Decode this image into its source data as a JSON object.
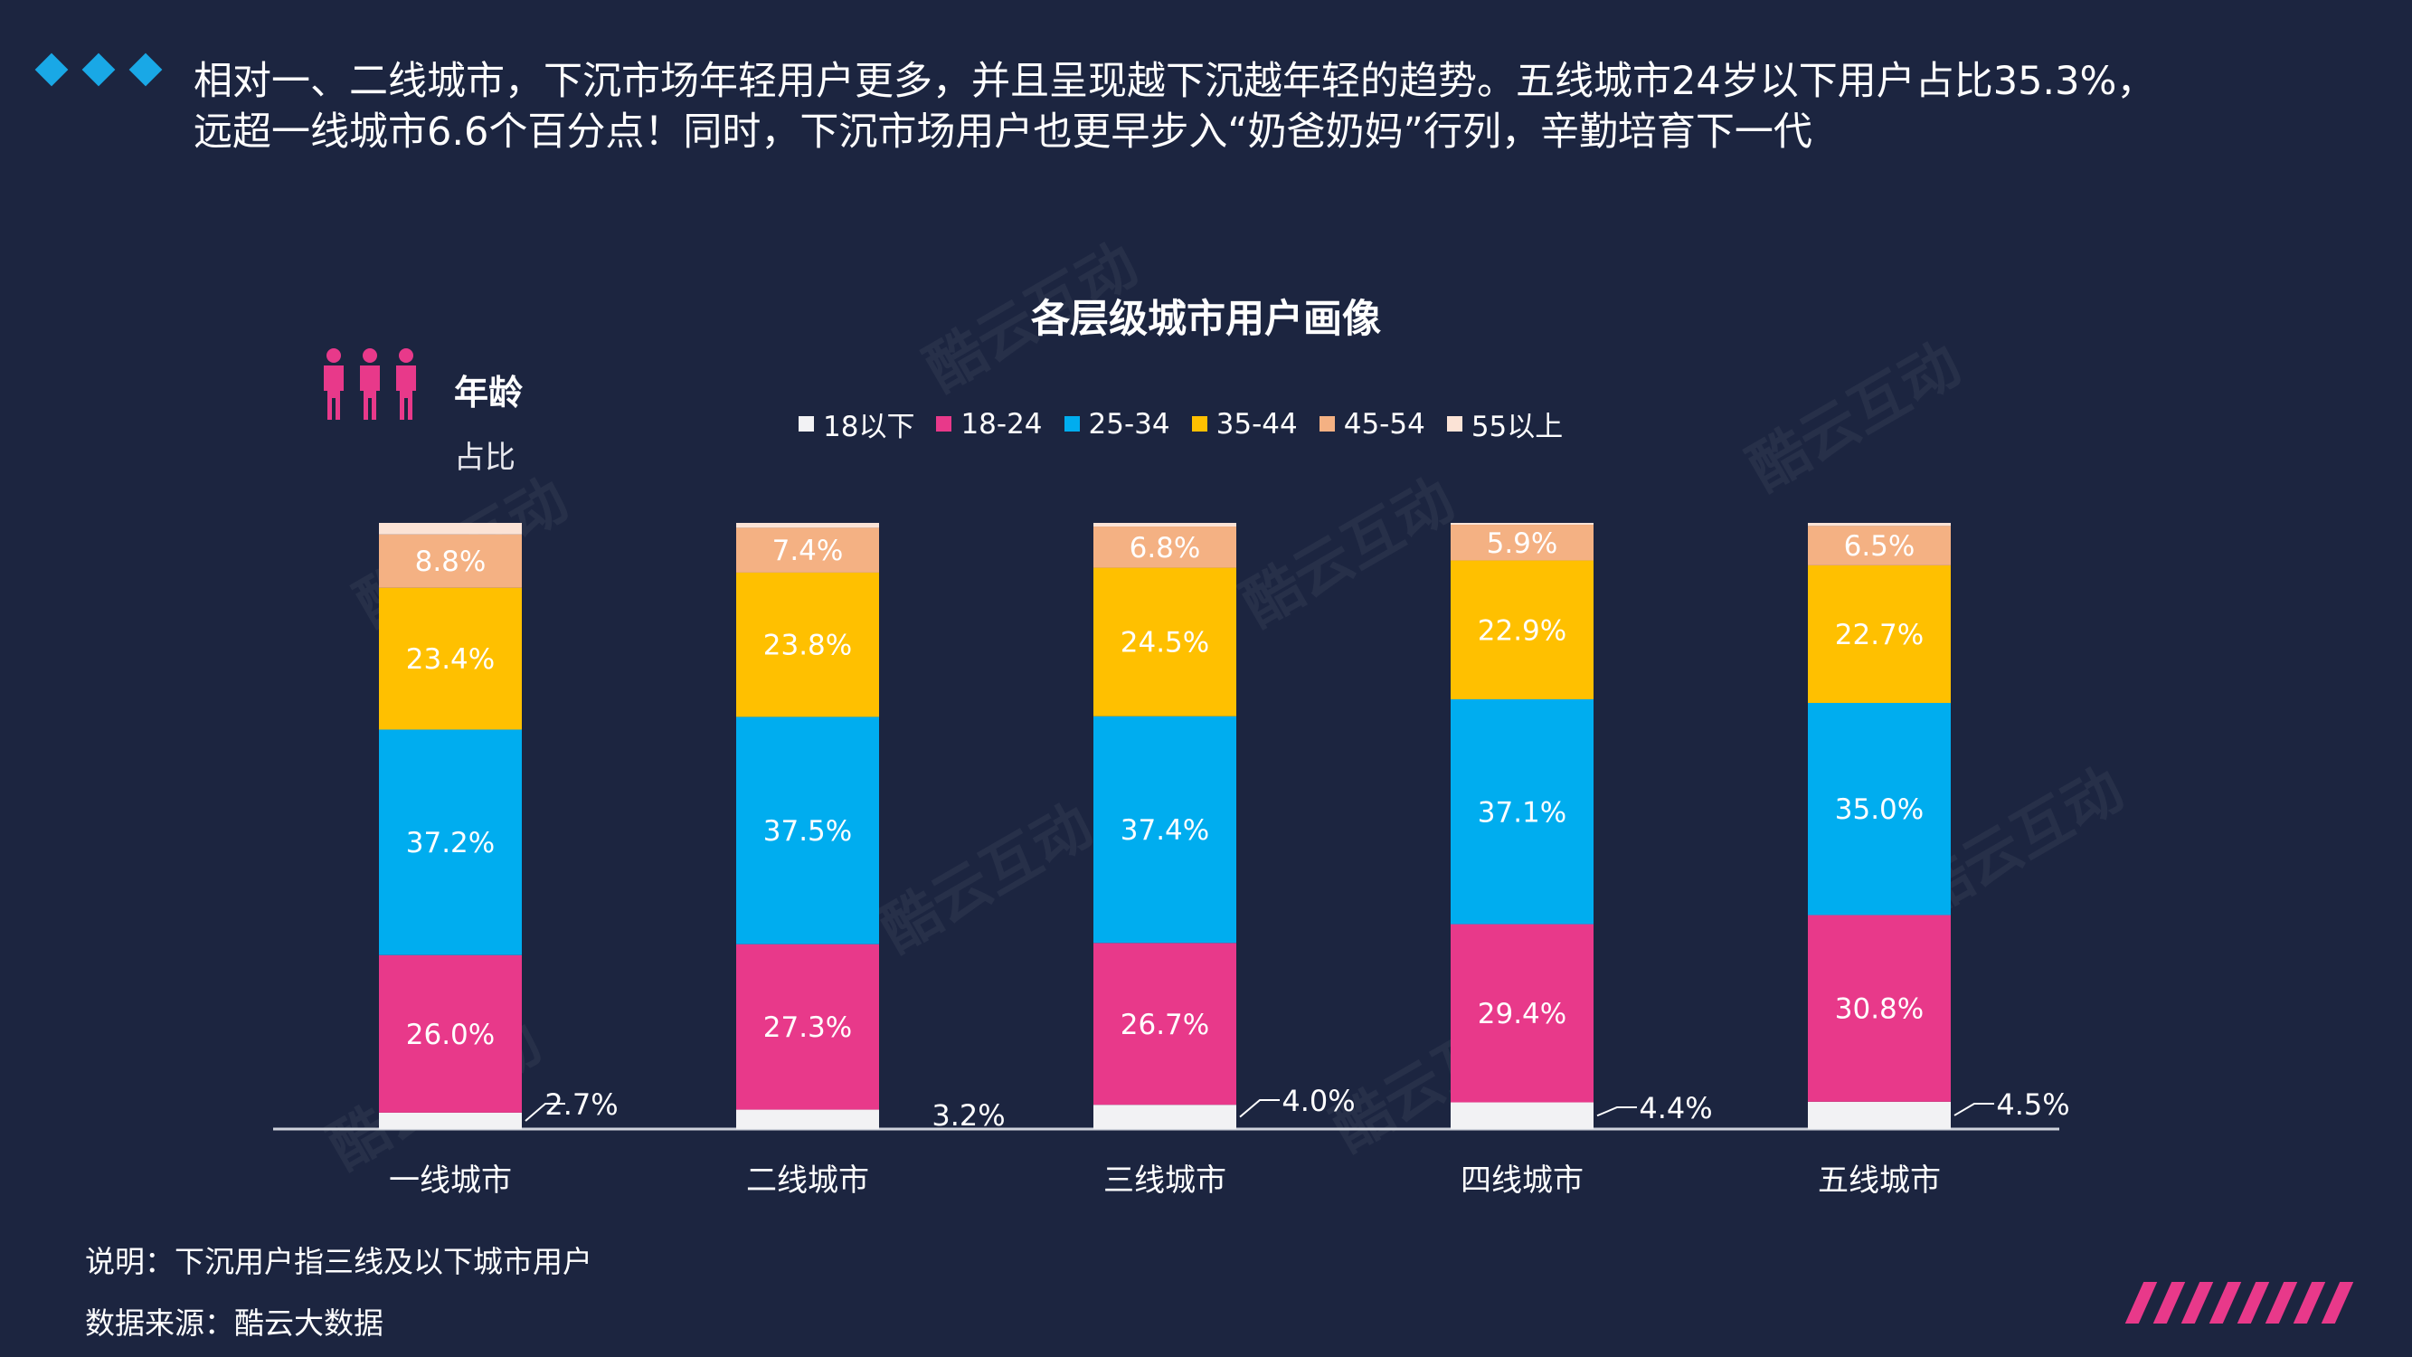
{
  "header": {
    "line1": "相对一、二线城市，下沉市场年轻用户更多，并且呈现越下沉越年轻的趋势。五线城市24岁以下用户占比35.3%，",
    "line2": "远超一线城市6.6个百分点！同时，下沉市场用户也更早步入“奶爸奶妈”行列，辛勤培育下一代"
  },
  "age_block": {
    "title": "年龄",
    "subtitle": "占比",
    "icon": "people-icon"
  },
  "watermark_text": "酷云互动",
  "colors": {
    "background": "#1c2540",
    "accent_blue": "#19a8e6",
    "accent_pink": "#e8398a"
  },
  "footer": {
    "note": "说明：下沉用户指三线及以下城市用户",
    "source": "数据来源：酷云大数据"
  },
  "chart_data": {
    "type": "bar",
    "stacked": true,
    "title": "各层级城市用户画像",
    "categories": [
      "一线城市",
      "二线城市",
      "三线城市",
      "四线城市",
      "五线城市"
    ],
    "ylim": [
      0,
      100
    ],
    "legend_position": "top",
    "series": [
      {
        "name": "18以下",
        "color": "#f2f2f4",
        "values": [
          2.7,
          3.2,
          4.0,
          4.4,
          4.5
        ]
      },
      {
        "name": "18-24",
        "color": "#e8398a",
        "values": [
          26.0,
          27.3,
          26.7,
          29.4,
          30.8
        ]
      },
      {
        "name": "25-34",
        "color": "#00adef",
        "values": [
          37.2,
          37.5,
          37.4,
          37.1,
          35.0
        ]
      },
      {
        "name": "35-44",
        "color": "#ffc000",
        "values": [
          23.4,
          23.8,
          24.5,
          22.9,
          22.7
        ]
      },
      {
        "name": "45-54",
        "color": "#f4b183",
        "values": [
          8.8,
          7.4,
          6.8,
          5.9,
          6.5
        ]
      },
      {
        "name": "55以上",
        "color": "#fbe3d6",
        "values": [
          1.9,
          0.8,
          0.6,
          0.3,
          0.5
        ]
      }
    ],
    "labels": {
      "18以下": [
        "2.7%",
        "3.2%",
        "4.0%",
        "4.4%",
        "4.5%"
      ],
      "18-24": [
        "26.0%",
        "27.3%",
        "26.7%",
        "29.4%",
        "30.8%"
      ],
      "25-34": [
        "37.2%",
        "37.5%",
        "37.4%",
        "37.1%",
        "35.0%"
      ],
      "35-44": [
        "23.4%",
        "23.8%",
        "24.5%",
        "22.9%",
        "22.7%"
      ],
      "45-54": [
        "8.8%",
        "7.4%",
        "6.8%",
        "5.9%",
        "6.5%"
      ]
    }
  }
}
